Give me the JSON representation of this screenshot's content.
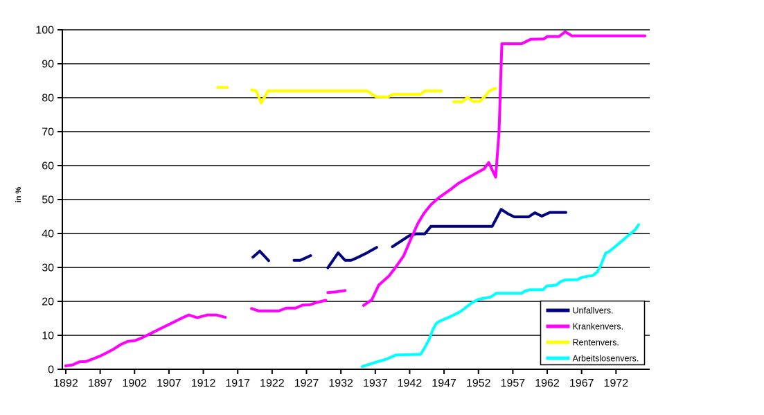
{
  "chart_data": {
    "type": "line",
    "title": "",
    "ylabel": "in %",
    "xlim": [
      1891.5,
      1976.9
    ],
    "ylim": [
      0,
      100
    ],
    "y_ticks": [
      0,
      10,
      20,
      30,
      40,
      50,
      60,
      70,
      80,
      90,
      100
    ],
    "x_ticks": [
      1892,
      1897,
      1902,
      1907,
      1912,
      1917,
      1922,
      1927,
      1932,
      1937,
      1942,
      1947,
      1952,
      1957,
      1962,
      1967,
      1972
    ],
    "grid": "horizontal",
    "background": "#ffffff",
    "axis_color": "#000000",
    "legend": {
      "position": "inside-bottom-right",
      "border": true,
      "background": "#ffffff"
    },
    "series": [
      {
        "name": "Unfallvers.",
        "color": "#000080",
        "segments": [
          [
            [
              1919.2,
              33
            ],
            [
              1920.2,
              34.8
            ],
            [
              1921.5,
              32
            ]
          ],
          [
            [
              1925.2,
              32.1
            ],
            [
              1926.1,
              32.1
            ],
            [
              1927.6,
              33.5
            ]
          ],
          [
            [
              1930.1,
              29.9
            ],
            [
              1931.6,
              34.3
            ],
            [
              1932.6,
              32.1
            ],
            [
              1933.5,
              32.1
            ],
            [
              1934.5,
              33
            ],
            [
              1935.8,
              34.3
            ],
            [
              1937.2,
              35.9
            ]
          ],
          [
            [
              1939.5,
              36.1
            ],
            [
              1941.9,
              39.3
            ],
            [
              1942.9,
              39.9
            ],
            [
              1944.2,
              39.9
            ],
            [
              1945.1,
              42.1
            ],
            [
              1954.0,
              42.1
            ],
            [
              1955.3,
              47.1
            ],
            [
              1956.3,
              45.8
            ],
            [
              1957.2,
              44.9
            ],
            [
              1959.3,
              44.9
            ],
            [
              1960.2,
              46.1
            ],
            [
              1961.2,
              45.1
            ],
            [
              1962.4,
              46.2
            ],
            [
              1964.7,
              46.2
            ]
          ]
        ]
      },
      {
        "name": "Krankenvers.",
        "color": "#ff00ff",
        "segments": [
          [
            [
              1892,
              1
            ],
            [
              1893,
              1.3
            ],
            [
              1894,
              2.2
            ],
            [
              1895,
              2.3
            ],
            [
              1896,
              3.1
            ],
            [
              1897,
              3.9
            ],
            [
              1898,
              4.9
            ],
            [
              1899,
              6
            ],
            [
              1900,
              7.3
            ],
            [
              1901,
              8.2
            ],
            [
              1902,
              8.4
            ],
            [
              1903,
              9.2
            ],
            [
              1904,
              10.2
            ],
            [
              1905,
              11.2
            ],
            [
              1906,
              12.2
            ],
            [
              1907,
              13.2
            ],
            [
              1908,
              14.2
            ],
            [
              1909,
              15.2
            ],
            [
              1909.9,
              16
            ],
            [
              1911.1,
              15.2
            ],
            [
              1912.6,
              16
            ],
            [
              1913.9,
              16
            ],
            [
              1915.2,
              15.3
            ]
          ],
          [
            [
              1919,
              17.9
            ],
            [
              1920,
              17.2
            ],
            [
              1923,
              17.2
            ],
            [
              1924,
              18
            ],
            [
              1925.4,
              18
            ],
            [
              1926.4,
              18.9
            ],
            [
              1927.5,
              19
            ],
            [
              1928.5,
              19.7
            ],
            [
              1929.8,
              20.3
            ]
          ],
          [
            [
              1930.1,
              22.6
            ],
            [
              1931.3,
              22.8
            ],
            [
              1932.6,
              23.2
            ]
          ],
          [
            [
              1935.3,
              18.8
            ],
            [
              1936.5,
              20.5
            ],
            [
              1937.5,
              24.8
            ],
            [
              1939,
              27.5
            ],
            [
              1939.9,
              29.9
            ],
            [
              1941.1,
              33.3
            ],
            [
              1942.2,
              38.5
            ],
            [
              1943.2,
              43
            ],
            [
              1944.1,
              46
            ],
            [
              1945.1,
              48.5
            ],
            [
              1946.2,
              50.5
            ],
            [
              1947.9,
              52.9
            ],
            [
              1949.1,
              54.8
            ],
            [
              1950.4,
              56.3
            ],
            [
              1951.6,
              57.7
            ],
            [
              1952.8,
              59
            ],
            [
              1953.5,
              60.9
            ],
            [
              1954.5,
              56.6
            ],
            [
              1955.0,
              70
            ],
            [
              1955.4,
              95.9
            ],
            [
              1958.3,
              95.9
            ],
            [
              1959.6,
              97.2
            ],
            [
              1961.5,
              97.3
            ],
            [
              1962.0,
              98
            ],
            [
              1963.7,
              98
            ],
            [
              1964.6,
              99.4
            ],
            [
              1965.6,
              98.2
            ],
            [
              1976.2,
              98.2
            ]
          ]
        ]
      },
      {
        "name": "Rentenvers.",
        "color": "#ffff00",
        "segments": [
          [
            [
              1914.1,
              83
            ],
            [
              1915.5,
              83
            ]
          ],
          [
            [
              1919,
              82.3
            ],
            [
              1919.7,
              82
            ],
            [
              1920.4,
              78.4
            ],
            [
              1921.4,
              82
            ],
            [
              1935.8,
              82
            ],
            [
              1937.1,
              80.3
            ],
            [
              1938.8,
              80.2
            ],
            [
              1939.6,
              81
            ],
            [
              1943.6,
              81
            ],
            [
              1944.2,
              82
            ],
            [
              1946.6,
              82
            ]
          ],
          [
            [
              1948.4,
              78.8
            ],
            [
              1949.7,
              78.8
            ],
            [
              1950.4,
              80.1
            ],
            [
              1951.2,
              78.9
            ],
            [
              1952.2,
              78.9
            ],
            [
              1952.9,
              80.3
            ],
            [
              1953.6,
              82
            ],
            [
              1954.5,
              82.8
            ]
          ]
        ]
      },
      {
        "name": "Arbeitslosenvers.",
        "color": "#00ffff",
        "segments": [
          [
            [
              1935.1,
              0.8
            ],
            [
              1936.8,
              1.9
            ],
            [
              1938.5,
              2.9
            ],
            [
              1940,
              4.2
            ],
            [
              1943.6,
              4.4
            ],
            [
              1944.2,
              6.4
            ],
            [
              1944.9,
              9.1
            ],
            [
              1945.4,
              11.8
            ],
            [
              1945.9,
              13.6
            ],
            [
              1946.4,
              14.2
            ],
            [
              1947.9,
              15.5
            ],
            [
              1949.4,
              17
            ],
            [
              1951,
              19.5
            ],
            [
              1952,
              20.6
            ],
            [
              1953.8,
              21.3
            ],
            [
              1954.6,
              22.4
            ],
            [
              1958.3,
              22.4
            ],
            [
              1958.8,
              23.1
            ],
            [
              1959.5,
              23.4
            ],
            [
              1961.4,
              23.4
            ],
            [
              1961.9,
              24.5
            ],
            [
              1963.3,
              24.8
            ],
            [
              1964,
              25.9
            ],
            [
              1964.6,
              26.3
            ],
            [
              1966.4,
              26.4
            ],
            [
              1967.1,
              27.1
            ],
            [
              1967.9,
              27.4
            ],
            [
              1968.6,
              27.6
            ],
            [
              1969.3,
              28.7
            ],
            [
              1969.8,
              30.7
            ],
            [
              1970.5,
              34.2
            ],
            [
              1971,
              34.7
            ],
            [
              1971.8,
              36
            ],
            [
              1972.8,
              37.7
            ],
            [
              1973.8,
              39.4
            ],
            [
              1974.8,
              41.1
            ],
            [
              1975.3,
              42.6
            ]
          ]
        ]
      }
    ]
  }
}
